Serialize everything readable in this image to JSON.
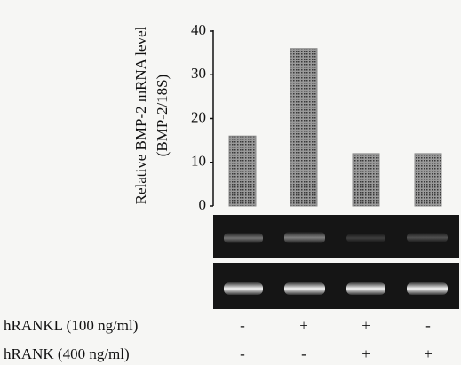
{
  "chart_data": {
    "type": "bar",
    "y_label": [
      "Relative BMP-2 mRNA level",
      "(BMP-2/18S)"
    ],
    "categories": [
      null,
      null,
      null,
      null
    ],
    "values": [
      16,
      36,
      12,
      12
    ],
    "color": "#8a8a8a",
    "ylim": [
      0,
      40
    ],
    "yticks": [
      0,
      10,
      20,
      30,
      40
    ],
    "grid": false,
    "conditions": [
      {
        "label": "hRANKL (100 ng/ml)",
        "values": [
          "-",
          "+",
          "+",
          "-"
        ]
      },
      {
        "label": "hRANK (400 ng/ml)",
        "values": [
          "-",
          "-",
          "+",
          "+"
        ]
      }
    ]
  }
}
